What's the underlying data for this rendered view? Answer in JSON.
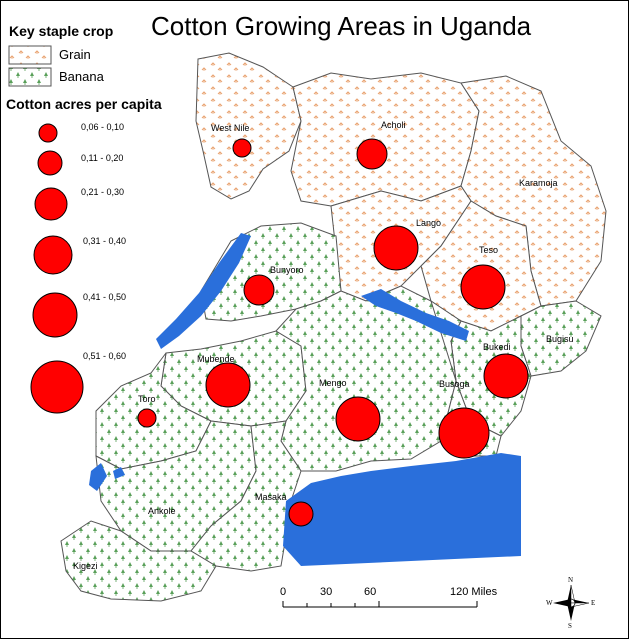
{
  "title": "Cotton Growing Areas in Uganda",
  "legend": {
    "crop_heading": "Key staple crop",
    "crops": [
      {
        "label": "Grain",
        "color": "#e9a371"
      },
      {
        "label": "Banana",
        "color": "#5aa05a"
      }
    ],
    "cotton_heading": "Cotton acres per capita",
    "classes": [
      {
        "label": "0,06 - 0,10",
        "rank": 1
      },
      {
        "label": "0,11 - 0,20",
        "rank": 2
      },
      {
        "label": "0,21 - 0,30",
        "rank": 3
      },
      {
        "label": "0,31 - 0,40",
        "rank": 4
      },
      {
        "label": "0,41 - 0,50",
        "rank": 5
      },
      {
        "label": "0,51 - 0,60",
        "rank": 6
      }
    ]
  },
  "regions": [
    {
      "name": "West Nile",
      "crop": "Grain",
      "cotton_class": "0,06 - 0,10"
    },
    {
      "name": "Acholi",
      "crop": "Grain",
      "cotton_class": "0,11 - 0,20"
    },
    {
      "name": "Karamoja",
      "crop": "Grain",
      "cotton_class": null
    },
    {
      "name": "Lango",
      "crop": "Grain",
      "cotton_class": "0,31 - 0,40"
    },
    {
      "name": "Teso",
      "crop": "Grain",
      "cotton_class": "0,31 - 0,40"
    },
    {
      "name": "Bunyoro",
      "crop": "Banana",
      "cotton_class": "0,11 - 0,20"
    },
    {
      "name": "Bugisu",
      "crop": "Banana",
      "cotton_class": null
    },
    {
      "name": "Bukedi",
      "crop": "Banana",
      "cotton_class": "0,31 - 0,40"
    },
    {
      "name": "Mubende",
      "crop": "Banana",
      "cotton_class": "0,31 - 0,40"
    },
    {
      "name": "Mengo",
      "crop": "Banana",
      "cotton_class": "0,31 - 0,40"
    },
    {
      "name": "Busoga",
      "crop": "Banana",
      "cotton_class": "0,41 - 0,50"
    },
    {
      "name": "Toro",
      "crop": "Banana",
      "cotton_class": "0,06 - 0,10"
    },
    {
      "name": "Masaka",
      "crop": "Banana",
      "cotton_class": "0,06 - 0,10"
    },
    {
      "name": "Ankole",
      "crop": "Banana",
      "cotton_class": null
    },
    {
      "name": "Kigezi",
      "crop": "Banana",
      "cotton_class": null
    }
  ],
  "colors": {
    "bubble": "#ff0000",
    "water": "#2a6fdb",
    "boundary": "#444444"
  },
  "scale_bar": {
    "ticks": [
      "0",
      "30",
      "60",
      "120 Miles"
    ]
  },
  "compass": {
    "n": "N",
    "s": "S",
    "e": "E",
    "w": "W"
  }
}
